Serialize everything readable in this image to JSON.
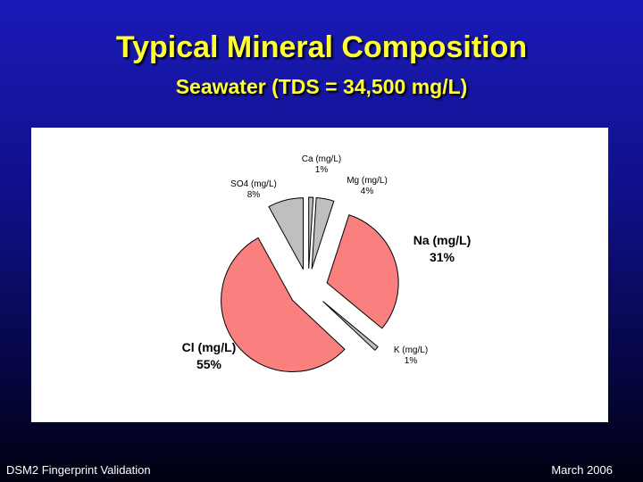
{
  "slide": {
    "title": "Typical Mineral Composition",
    "subtitle": "Seawater (TDS = 34,500 mg/L)",
    "footer_left": "DSM2 Fingerprint Validation",
    "footer_right": "March  2006"
  },
  "colors": {
    "title": "#ffff33",
    "major_slice": "#fa8080",
    "minor_slice": "#bfbfbf",
    "background_top": "#1a1ab8",
    "background_bottom": "#000010"
  },
  "chart_data": {
    "type": "pie",
    "title": "",
    "slices": [
      {
        "name": "Ca (mg/L)",
        "pct_label": "1%",
        "value": 1,
        "color": "#bfbfbf",
        "bold": false
      },
      {
        "name": "Mg (mg/L)",
        "pct_label": "4%",
        "value": 4,
        "color": "#bfbfbf",
        "bold": false
      },
      {
        "name": "Na (mg/L)",
        "pct_label": "31%",
        "value": 31,
        "color": "#fa8080",
        "bold": true
      },
      {
        "name": "K (mg/L)",
        "pct_label": "1%",
        "value": 1,
        "color": "#bfbfbf",
        "bold": false
      },
      {
        "name": "Cl (mg/L)",
        "pct_label": "55%",
        "value": 55,
        "color": "#fa8080",
        "bold": true
      },
      {
        "name": "SO4 (mg/L)",
        "pct_label": "8%",
        "value": 8,
        "color": "#bfbfbf",
        "bold": false
      }
    ],
    "exploded": true,
    "legend": "none"
  }
}
